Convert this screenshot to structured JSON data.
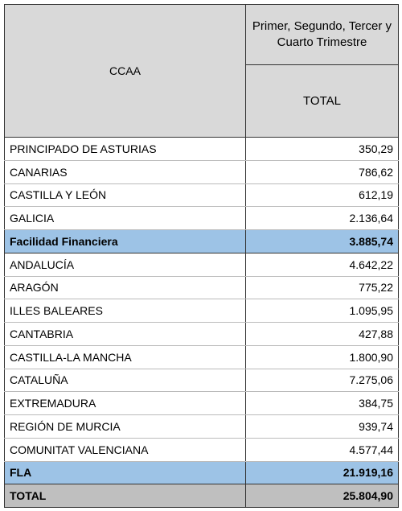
{
  "header": {
    "ccaa": "CCAA",
    "period": "Primer, Segundo, Tercer y Cuarto Trimestre",
    "total": "TOTAL"
  },
  "sections": [
    {
      "rows": [
        [
          "PRINCIPADO DE ASTURIAS",
          "350,29"
        ],
        [
          "CANARIAS",
          "786,62"
        ],
        [
          "CASTILLA Y LEÓN",
          "612,19"
        ],
        [
          "GALICIA",
          "2.136,64"
        ]
      ],
      "subtotal": [
        "Facilidad  Financiera",
        "3.885,74"
      ]
    },
    {
      "rows": [
        [
          "ANDALUCÍA",
          "4.642,22"
        ],
        [
          "ARAGÓN",
          "775,22"
        ],
        [
          "ILLES BALEARES",
          "1.095,95"
        ],
        [
          "CANTABRIA",
          "427,88"
        ],
        [
          "CASTILLA-LA MANCHA",
          "1.800,90"
        ],
        [
          "CATALUÑA",
          "7.275,06"
        ],
        [
          "EXTREMADURA",
          "384,75"
        ],
        [
          "REGIÓN DE MURCIA",
          "939,74"
        ],
        [
          "COMUNITAT VALENCIANA",
          "4.577,44"
        ]
      ],
      "subtotal": [
        "FLA",
        "21.919,16"
      ]
    }
  ],
  "total": [
    "TOTAL",
    "25.804,90"
  ]
}
